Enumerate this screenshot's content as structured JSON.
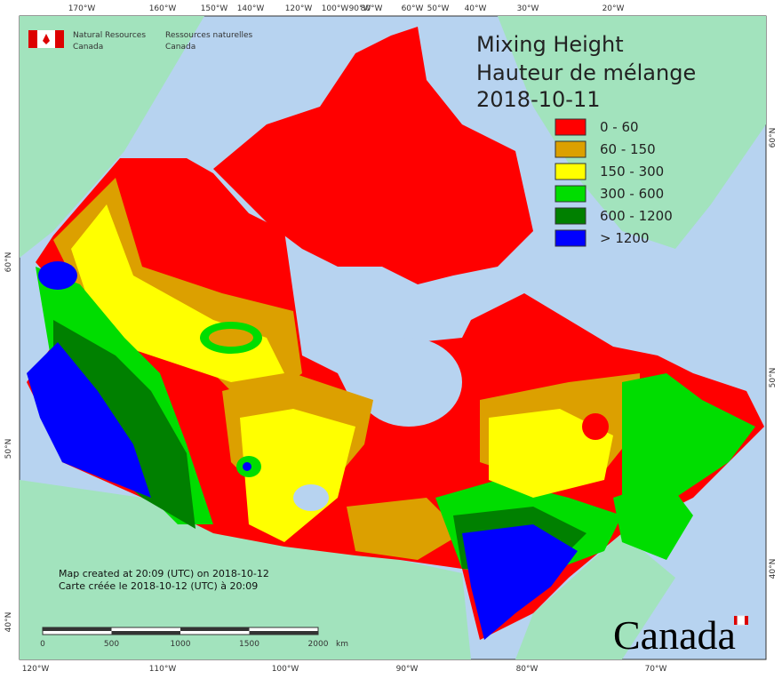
{
  "header": {
    "title_lines": [
      "Mixing Height",
      "Hauteur de mélange",
      "2018-10-11"
    ],
    "agency_en": [
      "Natural Resources",
      "Canada"
    ],
    "agency_fr": [
      "Ressources naturelles",
      "Canada"
    ]
  },
  "legend": {
    "items": [
      {
        "label": "0 - 60",
        "color": "#ff0000"
      },
      {
        "label": "60 - 150",
        "color": "#dca000"
      },
      {
        "label": "150 - 300",
        "color": "#ffff00"
      },
      {
        "label": "300 - 600",
        "color": "#00dd00"
      },
      {
        "label": "600 - 1200",
        "color": "#008000"
      },
      {
        "label": "> 1200",
        "color": "#0000ff"
      }
    ]
  },
  "graticule": {
    "top": [
      "170°W",
      "160°W",
      "150°W",
      "140°W",
      "120°W",
      "100°W",
      "90°W",
      "80°W",
      "60°W",
      "50°W",
      "40°W",
      "30°W",
      "20°W"
    ],
    "bottom": [
      "120°W",
      "110°W",
      "100°W",
      "90°W",
      "80°W",
      "70°W"
    ],
    "left": [
      "60°N",
      "50°N",
      "40°N"
    ],
    "right": [
      "60°N",
      "50°N",
      "40°N"
    ]
  },
  "credits": [
    "Map created at 20:09 (UTC) on 2018-10-12",
    "Carte créée le 2018-10-12 (UTC) à 20:09"
  ],
  "scale_bar": {
    "labels": [
      "0",
      "500",
      "1000",
      "1500",
      "2000"
    ],
    "unit": "km"
  },
  "wordmark": "Canada"
}
